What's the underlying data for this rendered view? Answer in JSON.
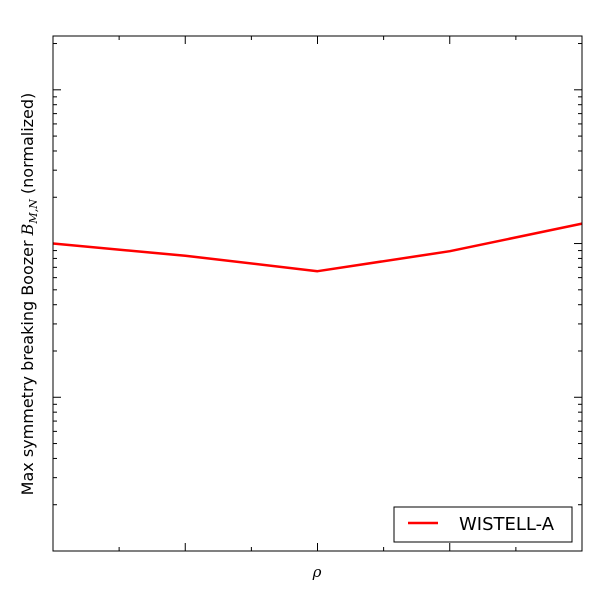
{
  "chart_data": {
    "type": "line",
    "title": "",
    "xlabel": "ρ",
    "ylabel_prefix": "Max symmetry breaking Boozer ",
    "ylabel_math": "B",
    "ylabel_math_sub": "M,N",
    "ylabel_suffix": " (normalized)",
    "x": [
      0,
      0.25,
      0.5,
      0.75,
      1.0
    ],
    "xlim": [
      0,
      1
    ],
    "yscale": "log",
    "ylim_log10": [
      -3,
      0.35
    ],
    "series": [
      {
        "name": "WISTELL-A",
        "color": "#ff0000",
        "log10_values": [
          -1.0,
          -1.08,
          -1.18,
          -1.05,
          -0.87
        ]
      }
    ],
    "legend": {
      "position": "bottom-right"
    },
    "grid": false
  }
}
